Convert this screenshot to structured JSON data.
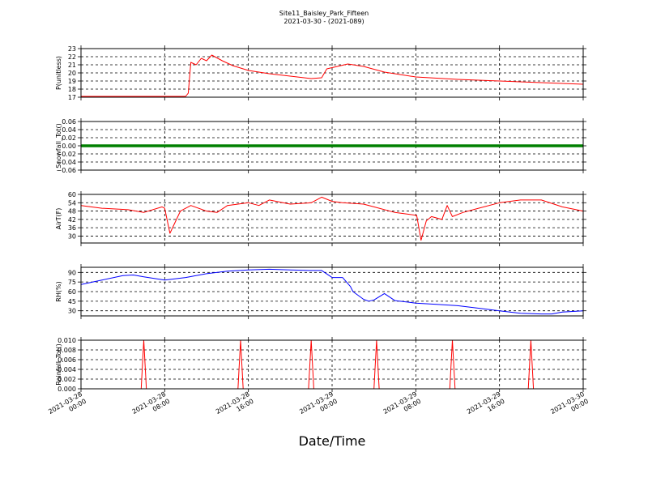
{
  "chart_data": [
    {
      "type": "line",
      "title_line1": "Site11_Baisley_Park_Fifteen",
      "title_line2": "2021-03-30 - (2021-089)",
      "xlabel": "Date/Time",
      "ylabel": "P(unitless)",
      "ylim": [
        17,
        23
      ],
      "yticks": [
        "17",
        "18",
        "19",
        "20",
        "21",
        "22",
        "23"
      ],
      "xlim": [
        "2021-03-28 00:00",
        "2021-03-30 00:00"
      ],
      "xticks": [
        "2021-03-28\n00:00",
        "2021-03-28\n08:00",
        "2021-03-28\n16:00",
        "2021-03-29\n00:00",
        "2021-03-29\n08:00",
        "2021-03-29\n16:00",
        "2021-03-30\n00:00"
      ],
      "grid": true,
      "series": [
        {
          "color": "#ff0000",
          "x": [
            "2021-03-28 00:00",
            "2021-03-28 06:00",
            "2021-03-28 10:00",
            "2021-03-28 10:15",
            "2021-03-28 10:30",
            "2021-03-28 11:00",
            "2021-03-28 11:30",
            "2021-03-28 12:00",
            "2021-03-28 12:30",
            "2021-03-28 13:30",
            "2021-03-28 14:30",
            "2021-03-28 16:00",
            "2021-03-28 18:00",
            "2021-03-28 20:00",
            "2021-03-28 22:00",
            "2021-03-28 23:00",
            "2021-03-28 23:30",
            "2021-03-29 00:30",
            "2021-03-29 01:30",
            "2021-03-29 03:00",
            "2021-03-29 05:00",
            "2021-03-29 08:00",
            "2021-03-29 12:00",
            "2021-03-29 16:00",
            "2021-03-29 20:00",
            "2021-03-30 00:00"
          ],
          "y": [
            17.1,
            17.1,
            17.1,
            17.5,
            21.3,
            21.0,
            21.8,
            21.5,
            22.2,
            21.5,
            20.9,
            20.3,
            19.9,
            19.6,
            19.3,
            19.4,
            20.5,
            20.8,
            21.1,
            20.8,
            20.1,
            19.5,
            19.2,
            19.0,
            18.8,
            18.6
          ]
        }
      ]
    },
    {
      "type": "line",
      "ylabel": "Snowfall_Tot()",
      "ylim": [
        -0.06,
        0.06
      ],
      "yticks": [
        "−0.06",
        "−0.04",
        "−0.02",
        "0.00",
        "0.02",
        "0.04",
        "0.06"
      ],
      "grid": true,
      "series": [
        {
          "color": "#008000",
          "x": [
            "2021-03-28 00:00",
            "2021-03-30 00:00"
          ],
          "y": [
            0.0,
            0.0
          ]
        }
      ]
    },
    {
      "type": "line",
      "ylabel": "AirT(F)",
      "ylim": [
        25,
        60
      ],
      "yticks": [
        "30",
        "36",
        "42",
        "48",
        "54",
        "60"
      ],
      "grid": true,
      "series": [
        {
          "color": "#ff0000",
          "x": [
            "2021-03-28 00:00",
            "2021-03-28 02:00",
            "2021-03-28 04:30",
            "2021-03-28 06:00",
            "2021-03-28 07:45",
            "2021-03-28 08:00",
            "2021-03-28 08:30",
            "2021-03-28 09:30",
            "2021-03-28 10:30",
            "2021-03-28 12:00",
            "2021-03-28 13:00",
            "2021-03-28 14:00",
            "2021-03-28 15:00",
            "2021-03-28 16:00",
            "2021-03-28 17:00",
            "2021-03-28 18:00",
            "2021-03-28 20:00",
            "2021-03-28 22:00",
            "2021-03-28 23:00",
            "2021-03-29 00:00",
            "2021-03-29 01:00",
            "2021-03-29 03:00",
            "2021-03-29 04:00",
            "2021-03-29 06:00",
            "2021-03-29 08:00",
            "2021-03-29 08:05",
            "2021-03-29 08:30",
            "2021-03-29 09:00",
            "2021-03-29 09:30",
            "2021-03-29 10:30",
            "2021-03-29 11:00",
            "2021-03-29 11:30",
            "2021-03-29 12:30",
            "2021-03-29 14:00",
            "2021-03-29 16:00",
            "2021-03-29 18:00",
            "2021-03-29 20:00",
            "2021-03-29 22:00",
            "2021-03-30 00:00"
          ],
          "y": [
            52,
            50,
            49,
            47,
            51,
            50,
            32,
            48,
            52,
            48,
            47,
            52,
            53,
            54,
            52,
            56,
            53,
            54,
            58,
            55,
            54,
            53,
            51,
            47,
            45,
            45,
            27,
            41,
            44,
            42,
            52,
            44,
            47,
            50,
            54,
            56,
            56,
            51,
            48
          ]
        }
      ]
    },
    {
      "type": "line",
      "ylabel": "RH(%)",
      "ylim": [
        22,
        98
      ],
      "yticks": [
        "30",
        "45",
        "60",
        "75",
        "90"
      ],
      "grid": true,
      "series": [
        {
          "color": "#0000ff",
          "x": [
            "2021-03-28 00:00",
            "2021-03-28 02:00",
            "2021-03-28 04:00",
            "2021-03-28 05:00",
            "2021-03-28 06:00",
            "2021-03-28 08:00",
            "2021-03-28 10:00",
            "2021-03-28 12:00",
            "2021-03-28 14:00",
            "2021-03-28 16:00",
            "2021-03-28 18:00",
            "2021-03-28 20:00",
            "2021-03-28 22:00",
            "2021-03-28 23:00",
            "2021-03-29 00:00",
            "2021-03-29 01:00",
            "2021-03-29 01:45",
            "2021-03-29 02:00",
            "2021-03-29 03:00",
            "2021-03-29 03:30",
            "2021-03-29 04:00",
            "2021-03-29 05:00",
            "2021-03-29 06:00",
            "2021-03-29 08:00",
            "2021-03-29 10:00",
            "2021-03-29 12:00",
            "2021-03-29 14:00",
            "2021-03-29 16:00",
            "2021-03-29 18:00",
            "2021-03-29 20:00",
            "2021-03-29 21:00",
            "2021-03-29 22:00",
            "2021-03-30 00:00"
          ],
          "y": [
            71,
            78,
            85,
            86,
            83,
            78,
            82,
            88,
            92,
            94,
            95,
            94,
            93,
            93,
            82,
            82,
            68,
            60,
            48,
            45,
            47,
            57,
            46,
            42,
            40,
            38,
            34,
            30,
            26,
            25,
            25,
            28,
            30
          ]
        }
      ]
    },
    {
      "type": "line",
      "ylabel": "Rainfall_Tot()",
      "ylim": [
        0,
        0.01
      ],
      "yticks": [
        "0.000",
        "0.002",
        "0.004",
        "0.006",
        "0.008",
        "0.010"
      ],
      "grid": true,
      "series": [
        {
          "color": "#ff0000",
          "x": [
            "2021-03-28 00:00",
            "2021-03-28 05:45",
            "2021-03-28 06:00",
            "2021-03-28 06:15",
            "2021-03-28 15:00",
            "2021-03-28 15:15",
            "2021-03-28 15:30",
            "2021-03-28 21:45",
            "2021-03-28 22:00",
            "2021-03-28 22:15",
            "2021-03-29 04:00",
            "2021-03-29 04:15",
            "2021-03-29 04:30",
            "2021-03-29 11:15",
            "2021-03-29 11:30",
            "2021-03-29 11:45",
            "2021-03-29 18:45",
            "2021-03-29 19:00",
            "2021-03-29 19:15",
            "2021-03-30 00:00"
          ],
          "y": [
            0,
            0,
            0.01,
            0,
            0,
            0.01,
            0,
            0,
            0.01,
            0,
            0,
            0.01,
            0,
            0,
            0.01,
            0,
            0,
            0.01,
            0,
            0
          ]
        }
      ]
    }
  ]
}
